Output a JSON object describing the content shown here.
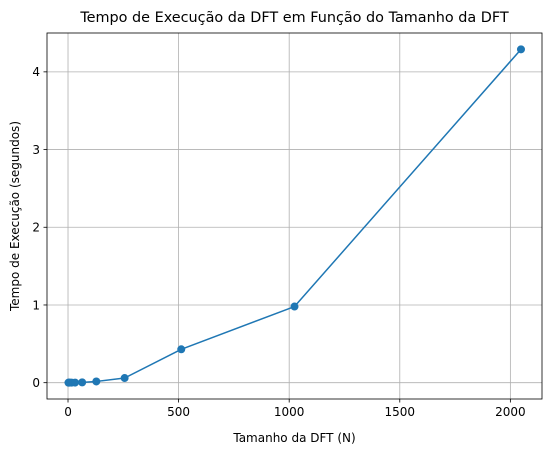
{
  "chart_data": {
    "type": "line",
    "title": "Tempo de Execução da DFT em Função do Tamanho da DFT",
    "xlabel": "Tamanho da DFT (N)",
    "ylabel": "Tempo de Execução (segundos)",
    "xlim": [
      -95,
      2143
    ],
    "ylim": [
      -0.21,
      4.5
    ],
    "xticks": [
      0,
      500,
      1000,
      1500,
      2000
    ],
    "yticks": [
      0,
      1,
      2,
      3,
      4
    ],
    "grid": true,
    "series": [
      {
        "name": "Tempo de Execução",
        "color": "#1f77b4",
        "marker": "circle",
        "x": [
          2,
          4,
          8,
          16,
          32,
          64,
          128,
          256,
          512,
          1024,
          2048
        ],
        "y": [
          0.0,
          0.0,
          0.0,
          0.0,
          0.001,
          0.004,
          0.016,
          0.06,
          0.43,
          0.98,
          4.29
        ]
      }
    ]
  }
}
